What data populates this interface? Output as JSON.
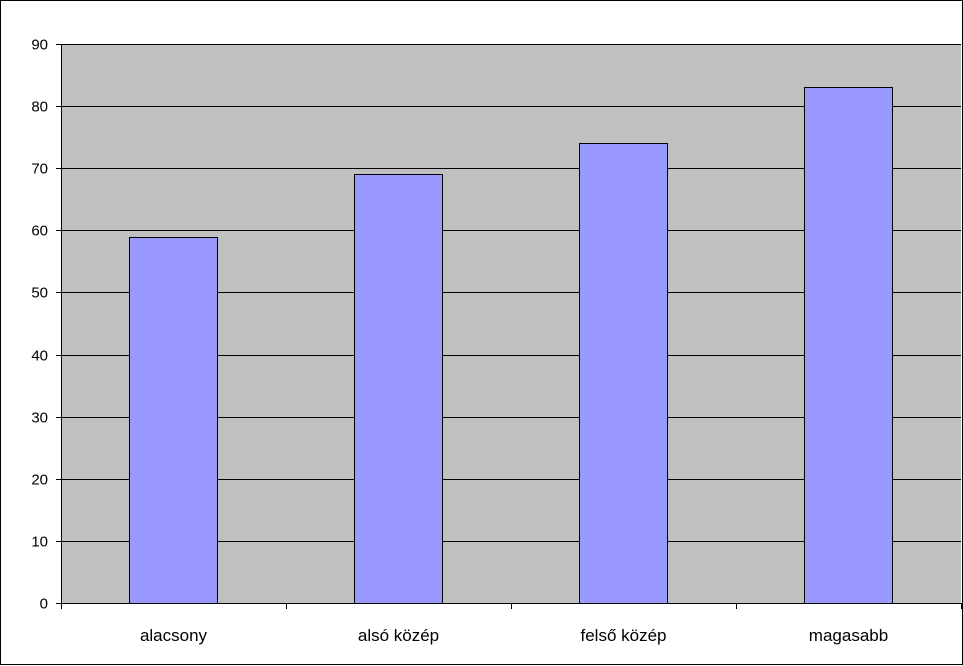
{
  "chart_data": {
    "type": "bar",
    "title": "",
    "xlabel": "",
    "ylabel": "",
    "categories": [
      "alacsony",
      "alsó közép",
      "felső közép",
      "magasabb"
    ],
    "values": [
      59,
      69,
      74,
      83
    ],
    "ylim": [
      0,
      90
    ],
    "yticks": [
      0,
      10,
      20,
      30,
      40,
      50,
      60,
      70,
      80,
      90
    ],
    "grid": true,
    "legend": "none",
    "colors": {
      "plot_background": "#c0c0c0",
      "bar_fill": "#9999ff",
      "bar_stroke": "#000000",
      "gridline": "#000000"
    }
  }
}
